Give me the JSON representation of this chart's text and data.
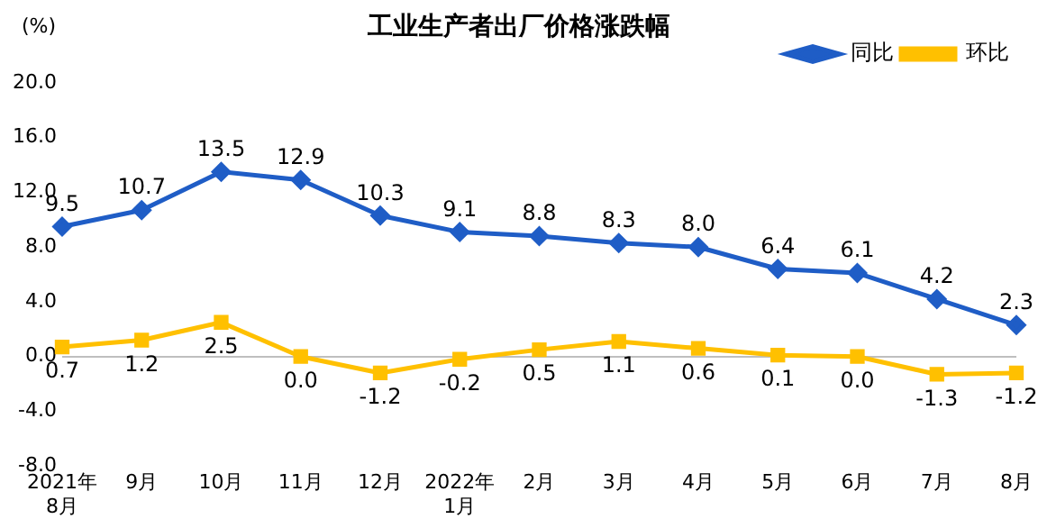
{
  "chart_data": {
    "type": "line",
    "title": "工业生产者出厂价格涨跌幅",
    "ylabel": "(%)",
    "categories": [
      "2021年\n8月",
      "9月",
      "10月",
      "11月",
      "12月",
      "2022年\n1月",
      "2月",
      "3月",
      "4月",
      "5月",
      "6月",
      "7月",
      "8月"
    ],
    "series": [
      {
        "name": "同比",
        "color": "#1f5dc6",
        "marker": "diamond",
        "values": [
          9.5,
          10.7,
          13.5,
          12.9,
          10.3,
          9.1,
          8.8,
          8.3,
          8.0,
          6.4,
          6.1,
          4.2,
          2.3
        ],
        "value_labels": [
          "9.5",
          "10.7",
          "13.5",
          "12.9",
          "10.3",
          "9.1",
          "8.8",
          "8.3",
          "8.0",
          "6.4",
          "6.1",
          "4.2",
          "2.3"
        ]
      },
      {
        "name": "环比",
        "color": "#ffc000",
        "marker": "square",
        "values": [
          0.7,
          1.2,
          2.5,
          0.0,
          -1.2,
          -0.2,
          0.5,
          1.1,
          0.6,
          0.1,
          0.0,
          -1.3,
          -1.2
        ],
        "value_labels": [
          "0.7",
          "1.2",
          "2.5",
          "0.0",
          "-1.2",
          "-0.2",
          "0.5",
          "1.1",
          "0.6",
          "0.1",
          "0.0",
          "-1.3",
          "-1.2"
        ]
      }
    ],
    "ylim": [
      -8,
      20
    ],
    "yticks": [
      {
        "value": -8,
        "label": "-8.0"
      },
      {
        "value": -4,
        "label": "-4.0"
      },
      {
        "value": 0,
        "label": "0.0"
      },
      {
        "value": 4,
        "label": "4.0"
      },
      {
        "value": 8,
        "label": "8.0"
      },
      {
        "value": 12,
        "label": "12.0"
      },
      {
        "value": 16,
        "label": "16.0"
      },
      {
        "value": 20,
        "label": "20.0"
      }
    ],
    "legend": "top right",
    "line_style": "solid"
  }
}
